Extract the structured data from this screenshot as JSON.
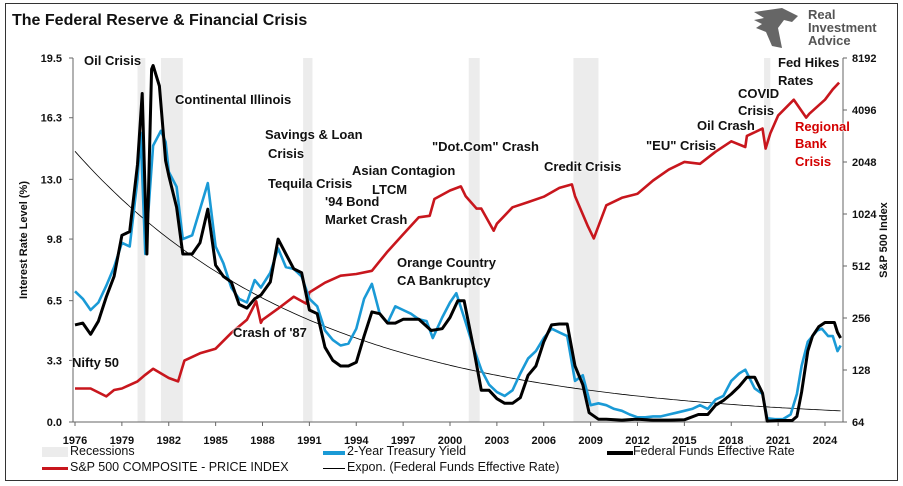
{
  "title": "The Federal Reserve & Financial Crisis",
  "logo": {
    "line1": "Real",
    "line2": "Investment",
    "line3": "Advice"
  },
  "colors": {
    "fed_funds": "#000000",
    "two_year": "#1a9ad6",
    "sp500": "#c8161d",
    "expon": "#000000",
    "recession": "#ececec",
    "regional_bank": "#d40000"
  },
  "chart_data": {
    "type": "line",
    "title": "The Federal Reserve & Financial Crisis",
    "xlim": [
      1976,
      2025.2
    ],
    "x_ticks": [
      "1976",
      "1979",
      "1982",
      "1985",
      "1988",
      "1991",
      "1994",
      "1997",
      "2000",
      "2003",
      "2006",
      "2009",
      "2012",
      "2015",
      "2018",
      "2021",
      "2024"
    ],
    "ylabel": "Interest Rate Level (%)",
    "ylim": [
      0,
      19.5
    ],
    "y_ticks": [
      "0.0",
      "3.3",
      "6.5",
      "9.8",
      "13.0",
      "16.3",
      "19.5"
    ],
    "y2label": "S&P 500 Index",
    "y2_scale": "log2",
    "y2lim": [
      64,
      8192
    ],
    "y2_ticks": [
      "64",
      "128",
      "256",
      "512",
      "1024",
      "2048",
      "4096",
      "8192"
    ],
    "grid": false,
    "legend_placement": "bottom",
    "recessions": [
      [
        1980.0,
        1980.5
      ],
      [
        1981.5,
        1982.9
      ],
      [
        1990.6,
        1991.2
      ],
      [
        2001.2,
        2001.9
      ],
      [
        2007.9,
        2009.5
      ],
      [
        2020.1,
        2020.5
      ]
    ],
    "series": [
      {
        "name": "2-Year Treasury Yield",
        "axis": "left",
        "x": [
          1976,
          1976.5,
          1977,
          1977.5,
          1978,
          1978.5,
          1979,
          1979.5,
          1980,
          1980.2,
          1980.5,
          1980.8,
          1981,
          1981.5,
          1981.8,
          1982,
          1982.5,
          1982.9,
          1983.5,
          1984,
          1984.5,
          1985,
          1985.5,
          1986,
          1986.5,
          1987,
          1987.5,
          1987.9,
          1988.5,
          1989,
          1989.5,
          1990,
          1990.5,
          1991,
          1991.5,
          1992,
          1992.5,
          1993,
          1993.5,
          1994,
          1994.5,
          1995,
          1995.5,
          1996,
          1996.5,
          1997,
          1997.5,
          1998,
          1998.5,
          1998.9,
          1999.5,
          2000,
          2000.4,
          2000.9,
          2001.5,
          2002,
          2002.5,
          2003,
          2003.5,
          2004,
          2004.5,
          2005,
          2005.5,
          2006,
          2006.5,
          2007,
          2007.5,
          2008,
          2008.5,
          2009,
          2009.5,
          2010,
          2010.5,
          2011,
          2011.5,
          2012,
          2012.5,
          2013,
          2013.5,
          2014,
          2014.5,
          2015,
          2015.5,
          2016,
          2016.5,
          2017,
          2017.5,
          2018,
          2018.5,
          2018.9,
          2019.5,
          2020,
          2020.3,
          2020.8,
          2021.3,
          2021.8,
          2022.2,
          2022.5,
          2022.9,
          2023.2,
          2023.5,
          2023.8,
          2024.2,
          2024.5,
          2024.8,
          2025
        ],
        "values": [
          7.0,
          6.6,
          6.0,
          6.4,
          7.3,
          8.3,
          9.6,
          9.4,
          13.0,
          15.5,
          9.0,
          12.5,
          14.8,
          15.6,
          15.0,
          13.4,
          12.6,
          9.8,
          10.0,
          11.4,
          12.8,
          9.4,
          8.5,
          7.2,
          6.6,
          6.4,
          7.6,
          7.2,
          8.0,
          9.3,
          8.3,
          8.2,
          7.8,
          6.6,
          6.2,
          4.9,
          4.4,
          4.1,
          4.2,
          5.0,
          6.6,
          7.4,
          5.8,
          5.3,
          6.2,
          6.0,
          5.8,
          5.5,
          5.4,
          4.5,
          5.6,
          6.4,
          6.9,
          5.6,
          4.0,
          2.8,
          2.0,
          1.6,
          1.4,
          1.7,
          2.6,
          3.4,
          3.8,
          4.5,
          5.0,
          4.8,
          4.6,
          2.2,
          2.5,
          0.9,
          1.0,
          0.9,
          0.7,
          0.6,
          0.4,
          0.25,
          0.25,
          0.3,
          0.3,
          0.4,
          0.5,
          0.6,
          0.7,
          0.9,
          0.7,
          1.2,
          1.4,
          2.2,
          2.6,
          2.8,
          1.8,
          1.5,
          0.2,
          0.15,
          0.15,
          0.4,
          1.5,
          3.0,
          4.3,
          4.6,
          4.9,
          5.0,
          4.6,
          4.6,
          3.8,
          4.1
        ]
      },
      {
        "name": "Federal Funds Effective Rate",
        "axis": "left",
        "x": [
          1976,
          1976.5,
          1977,
          1977.5,
          1978,
          1978.5,
          1979,
          1979.5,
          1980,
          1980.3,
          1980.6,
          1980.9,
          1981,
          1981.4,
          1981.8,
          1982,
          1982.5,
          1982.9,
          1983.5,
          1984,
          1984.5,
          1985,
          1985.5,
          1986,
          1986.5,
          1987,
          1987.5,
          1987.9,
          1988.5,
          1989,
          1989.5,
          1990,
          1990.5,
          1991,
          1991.5,
          1992,
          1992.5,
          1993,
          1993.5,
          1994,
          1994.5,
          1995,
          1995.5,
          1996,
          1996.5,
          1997,
          1997.5,
          1998,
          1998.8,
          1999.5,
          2000,
          2000.5,
          2000.9,
          2001.5,
          2002,
          2002.5,
          2003,
          2003.5,
          2004,
          2004.5,
          2005,
          2005.5,
          2006,
          2006.5,
          2007,
          2007.5,
          2008,
          2008.5,
          2008.9,
          2009.5,
          2010,
          2011,
          2012,
          2013,
          2014,
          2015,
          2015.9,
          2016.5,
          2017,
          2017.5,
          2018,
          2018.5,
          2019,
          2019.5,
          2020,
          2020.3,
          2021,
          2021.9,
          2022.2,
          2022.5,
          2022.9,
          2023.2,
          2023.6,
          2024,
          2024.6,
          2024.8,
          2025
        ],
        "values": [
          5.2,
          5.3,
          4.7,
          5.4,
          6.7,
          7.8,
          10.0,
          10.2,
          13.8,
          17.6,
          9.0,
          18.9,
          19.1,
          18.0,
          14.0,
          13.2,
          11.5,
          9.0,
          9.0,
          9.6,
          11.4,
          8.4,
          7.8,
          7.5,
          6.3,
          6.1,
          6.6,
          6.8,
          7.5,
          9.8,
          9.0,
          8.2,
          8.0,
          6.0,
          5.8,
          4.0,
          3.3,
          3.0,
          3.0,
          3.2,
          4.6,
          5.9,
          5.8,
          5.3,
          5.3,
          5.5,
          5.5,
          5.5,
          4.9,
          5.0,
          5.6,
          6.5,
          6.5,
          4.0,
          1.7,
          1.7,
          1.25,
          1.0,
          1.0,
          1.3,
          2.5,
          3.0,
          4.3,
          5.2,
          5.25,
          5.25,
          3.0,
          2.0,
          0.5,
          0.15,
          0.15,
          0.1,
          0.15,
          0.1,
          0.1,
          0.12,
          0.4,
          0.4,
          0.9,
          1.15,
          1.5,
          1.9,
          2.4,
          2.4,
          1.55,
          0.05,
          0.08,
          0.08,
          0.3,
          1.6,
          3.8,
          4.6,
          5.1,
          5.33,
          5.33,
          4.8,
          4.5
        ]
      },
      {
        "name": "S&P 500 COMPOSITE - PRICE INDEX",
        "axis": "right",
        "x": [
          1976,
          1977,
          1978,
          1978.5,
          1979,
          1980,
          1980.5,
          1981,
          1982,
          1982.6,
          1983,
          1984,
          1985,
          1986,
          1987,
          1987.6,
          1987.9,
          1988,
          1989,
          1990,
          1990.8,
          1991,
          1992,
          1993,
          1994,
          1995,
          1996,
          1997,
          1998,
          1998.7,
          1999,
          2000,
          2000.7,
          2001,
          2001.7,
          2002,
          2002.8,
          2003,
          2004,
          2005,
          2006,
          2007,
          2007.8,
          2008,
          2008.8,
          2009.2,
          2010,
          2011,
          2012,
          2013,
          2014,
          2015,
          2016,
          2017,
          2018,
          2018.9,
          2019,
          2020,
          2020.2,
          2020.5,
          2021,
          2022,
          2022.8,
          2023,
          2024,
          2024.5,
          2024.9
        ],
        "values": [
          100,
          100,
          90,
          98,
          100,
          110,
          120,
          130,
          115,
          110,
          145,
          160,
          170,
          210,
          250,
          320,
          240,
          250,
          290,
          340,
          310,
          360,
          410,
          450,
          460,
          480,
          620,
          780,
          980,
          1000,
          1250,
          1400,
          1480,
          1300,
          1100,
          1100,
          820,
          900,
          1120,
          1200,
          1290,
          1450,
          1520,
          1300,
          880,
          740,
          1150,
          1270,
          1340,
          1600,
          1850,
          2050,
          2000,
          2350,
          2700,
          2500,
          2900,
          3200,
          2450,
          3000,
          3800,
          4700,
          3700,
          3900,
          4700,
          5400,
          5900
        ]
      },
      {
        "name": "Expon. (Federal Funds Effective Rate)",
        "axis": "left",
        "type": "trendline",
        "x": [
          1976,
          1980,
          1985,
          1990,
          1995,
          2000,
          2005,
          2010,
          2015,
          2020,
          2025
        ],
        "values": [
          14.5,
          11.2,
          8.1,
          5.9,
          4.2,
          3.1,
          2.2,
          1.6,
          1.16,
          0.84,
          0.6
        ]
      }
    ],
    "annotations": [
      "Oil Crisis",
      "Continental Illinois",
      "Savings & Loan",
      "Crisis",
      "Tequila Crisis",
      "Asian Contagion",
      "LTCM",
      "'94 Bond",
      "Market Crash",
      "\"Dot.Com\" Crash",
      "Credit Crisis",
      "\"EU\" Crisis",
      "Oil Crash",
      "COVID",
      "Crisis",
      "Fed Hikes",
      "Rates",
      "Regional",
      "Bank",
      "Crisis",
      "Orange Country",
      "CA Bankruptcy",
      "Crash of '87",
      "Nifty 50"
    ]
  },
  "legend": {
    "recessions": "Recessions",
    "two_year": "2-Year Treasury Yield",
    "fed_funds": "Federal Funds Effective Rate",
    "sp500": "S&P 500 COMPOSITE - PRICE INDEX",
    "expon": "Expon. (Federal Funds Effective Rate)"
  }
}
